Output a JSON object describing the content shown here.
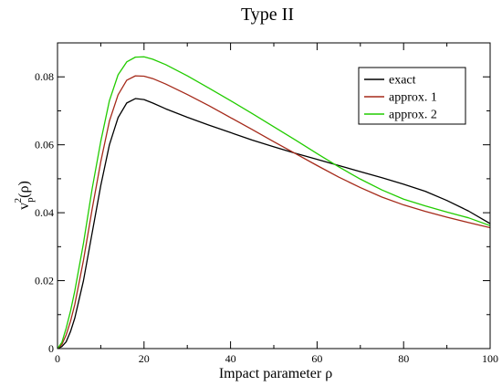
{
  "chart_data": {
    "type": "line",
    "title": "Type II",
    "xlabel": "Impact parameter ρ",
    "ylabel": {
      "base": "v",
      "sub": "p",
      "sup": "2",
      "arg": "(ρ)"
    },
    "xlim": [
      0,
      100
    ],
    "ylim": [
      0,
      0.09
    ],
    "xticks": [
      0,
      20,
      40,
      60,
      80,
      100
    ],
    "yticks": [
      0,
      0.02,
      0.04,
      0.06,
      0.08
    ],
    "xtick_labels": [
      "0",
      "20",
      "40",
      "60",
      "80",
      "100"
    ],
    "ytick_labels": [
      "0",
      "0.02",
      "0.04",
      "0.06",
      "0.08"
    ],
    "grid": false,
    "legend_position": "top-right",
    "series": [
      {
        "name": "exact",
        "color": "#000000",
        "x": [
          0,
          1,
          2,
          3,
          4,
          6,
          8,
          10,
          12,
          14,
          16,
          18,
          20,
          22,
          25,
          30,
          35,
          40,
          45,
          50,
          55,
          60,
          65,
          70,
          75,
          80,
          85,
          90,
          95,
          100
        ],
        "y": [
          0,
          0.0006,
          0.002,
          0.005,
          0.009,
          0.02,
          0.034,
          0.048,
          0.06,
          0.068,
          0.0723,
          0.0736,
          0.0733,
          0.0723,
          0.0706,
          0.0681,
          0.0658,
          0.0636,
          0.0614,
          0.0594,
          0.0575,
          0.0557,
          0.0539,
          0.0521,
          0.0503,
          0.0484,
          0.0463,
          0.0436,
          0.0405,
          0.0368
        ]
      },
      {
        "name": "approx. 1",
        "color": "#a52a1a",
        "x": [
          0,
          1,
          2,
          3,
          4,
          6,
          8,
          10,
          12,
          14,
          16,
          18,
          20,
          22,
          25,
          30,
          35,
          40,
          45,
          50,
          55,
          60,
          65,
          70,
          75,
          80,
          85,
          90,
          95,
          100
        ],
        "y": [
          0,
          0.0012,
          0.004,
          0.008,
          0.013,
          0.026,
          0.041,
          0.055,
          0.067,
          0.0747,
          0.079,
          0.0803,
          0.0802,
          0.0795,
          0.0779,
          0.0748,
          0.0715,
          0.068,
          0.0645,
          0.0609,
          0.0574,
          0.0539,
          0.0505,
          0.0474,
          0.0446,
          0.0423,
          0.0404,
          0.0387,
          0.0371,
          0.0356
        ]
      },
      {
        "name": "approx. 2",
        "color": "#22cc00",
        "x": [
          0,
          1,
          2,
          3,
          4,
          6,
          8,
          10,
          12,
          14,
          16,
          18,
          20,
          22,
          25,
          30,
          35,
          40,
          45,
          50,
          55,
          60,
          65,
          70,
          75,
          80,
          85,
          90,
          95,
          100
        ],
        "y": [
          0,
          0.0018,
          0.006,
          0.011,
          0.017,
          0.031,
          0.047,
          0.061,
          0.073,
          0.0806,
          0.0844,
          0.0858,
          0.0859,
          0.0852,
          0.0836,
          0.0803,
          0.0767,
          0.073,
          0.0692,
          0.0653,
          0.0614,
          0.0574,
          0.0535,
          0.0499,
          0.0467,
          0.044,
          0.042,
          0.0402,
          0.0385,
          0.0362
        ]
      }
    ]
  }
}
